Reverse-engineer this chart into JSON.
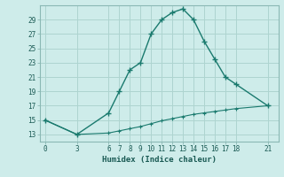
{
  "xlabel": "Humidex (Indice chaleur)",
  "bg_color": "#ceecea",
  "line_color": "#1a7a6e",
  "grid_color": "#aed4d0",
  "x_upper": [
    0,
    3,
    6,
    7,
    8,
    9,
    10,
    11,
    12,
    13,
    14,
    15,
    16,
    17,
    18,
    21
  ],
  "y_upper": [
    15,
    13,
    16,
    19,
    22,
    23,
    27,
    29,
    30,
    30.5,
    29,
    26,
    23.5,
    21,
    20,
    17
  ],
  "x_lower": [
    0,
    3,
    6,
    7,
    8,
    9,
    10,
    11,
    12,
    13,
    14,
    15,
    16,
    17,
    18,
    21
  ],
  "y_lower": [
    15,
    13,
    13.2,
    13.5,
    13.8,
    14.1,
    14.5,
    14.9,
    15.2,
    15.5,
    15.8,
    16.0,
    16.2,
    16.4,
    16.6,
    17
  ],
  "xticks": [
    0,
    3,
    6,
    7,
    8,
    9,
    10,
    11,
    12,
    13,
    14,
    15,
    16,
    17,
    18,
    21
  ],
  "yticks": [
    13,
    15,
    17,
    19,
    21,
    23,
    25,
    27,
    29
  ],
  "xlim": [
    -0.5,
    22
  ],
  "ylim": [
    12.0,
    31.0
  ]
}
